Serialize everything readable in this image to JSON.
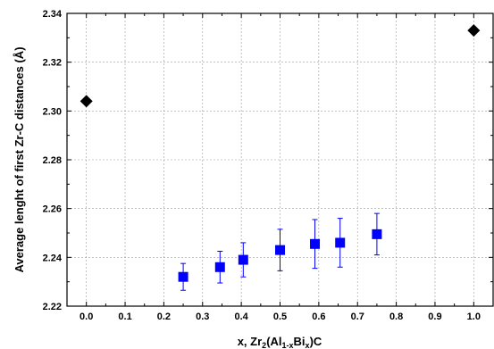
{
  "chart_data": {
    "type": "scatter",
    "title": "",
    "xlabel": {
      "prefix": "x, Zr",
      "sub1": "2",
      "mid1": "(Al",
      "sub2": "1-x",
      "mid2": "Bi",
      "sub3": "x",
      "suffix": ")C"
    },
    "ylabel": "Average lenght of first Zr-C distances  (Å)",
    "xlim": [
      -0.05,
      1.05
    ],
    "ylim": [
      2.22,
      2.34
    ],
    "xticks": [
      "0.0",
      "0.1",
      "0.2",
      "0.3",
      "0.4",
      "0.5",
      "0.6",
      "0.7",
      "0.8",
      "0.9",
      "1.0"
    ],
    "yticks": [
      "2.22",
      "2.24",
      "2.26",
      "2.28",
      "2.30",
      "2.32",
      "2.34"
    ],
    "grid": true,
    "series": [
      {
        "marker": "diamond",
        "color": "#000000",
        "points": [
          {
            "x": 0.0,
            "y": 2.304
          },
          {
            "x": 1.0,
            "y": 2.333
          }
        ]
      },
      {
        "marker": "square",
        "color": "#0000ff",
        "points": [
          {
            "x": 0.25,
            "y": 2.232,
            "err": 0.0055
          },
          {
            "x": 0.345,
            "y": 2.236,
            "err": 0.0065
          },
          {
            "x": 0.405,
            "y": 2.239,
            "err": 0.007
          },
          {
            "x": 0.5,
            "y": 2.243,
            "err": 0.0085
          },
          {
            "x": 0.59,
            "y": 2.2455,
            "err": 0.01
          },
          {
            "x": 0.655,
            "y": 2.246,
            "err": 0.01
          },
          {
            "x": 0.75,
            "y": 2.2495,
            "err": 0.0085
          }
        ]
      }
    ]
  }
}
